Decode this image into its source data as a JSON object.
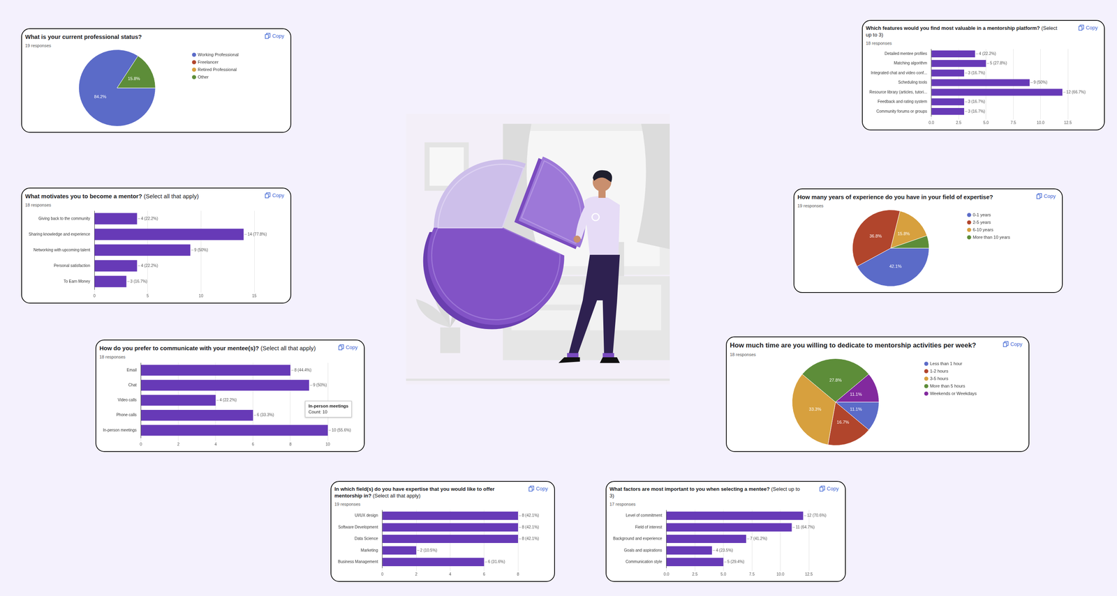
{
  "copy_label": "Copy",
  "chart_data": [
    {
      "type": "pie",
      "title": "What is your current professional status?",
      "subtitle": "19 responses",
      "categories": [
        "Working Professional",
        "Freelancer",
        "Retired Professional",
        "Other"
      ],
      "values": [
        84.2,
        0,
        0,
        15.8
      ],
      "colors": [
        "#5b6bc8",
        "#b1452c",
        "#d7a03e",
        "#5d8d39"
      ],
      "legend": "right",
      "data_labels": true,
      "value_labels": [
        "84.2%",
        null,
        null,
        "15.8%"
      ]
    },
    {
      "type": "bar",
      "orientation": "horizontal",
      "title": "What motivates you to become a mentor? (Select all that apply)",
      "subtitle": "18 responses",
      "categories": [
        "Giving back to the community",
        "Sharing knowledge and experience",
        "Networking with upcoming talent",
        "Personal satisfaction",
        "To Earn Money"
      ],
      "values": [
        4,
        14,
        9,
        4,
        3
      ],
      "value_labels": [
        "4 (22.2%)",
        "14 (77.8%)",
        "9 (50%)",
        "4 (22.2%)",
        "3 (16.7%)"
      ],
      "color": "#673ab7",
      "xlim": [
        0,
        15
      ],
      "xticks": [
        0,
        5,
        10,
        15
      ],
      "grid": true,
      "data_labels": true
    },
    {
      "type": "bar",
      "orientation": "horizontal",
      "title": "How do you prefer to communicate with your mentee(s)? (Select all that apply)",
      "subtitle": "18 responses",
      "categories": [
        "Email",
        "Chat",
        "Video calls",
        "Phone calls",
        "In-person meetings"
      ],
      "values": [
        8,
        9,
        4,
        6,
        10
      ],
      "value_labels": [
        "8 (44.4%)",
        "9 (50%)",
        "4 (22.2%)",
        "6 (33.3%)",
        "10 (55.6%)"
      ],
      "color": "#673ab7",
      "xlim": [
        0,
        10
      ],
      "xticks": [
        0,
        2,
        4,
        6,
        8,
        10
      ],
      "grid": true,
      "data_labels": true,
      "annotations": [
        "In-person meetings",
        "Count: 10"
      ]
    },
    {
      "type": "bar",
      "orientation": "horizontal",
      "title": "In which field(s) do you have expertise that you would like to offer mentorship in? (Select all that apply)",
      "subtitle": "19 responses",
      "categories": [
        "UI/UX design",
        "Software Development",
        "Data Science",
        "Marketing",
        "Business Management"
      ],
      "values": [
        8,
        8,
        8,
        2,
        6
      ],
      "value_labels": [
        "8 (42.1%)",
        "8 (42.1%)",
        "8 (42.1%)",
        "2 (10.5%)",
        "6 (31.6%)"
      ],
      "color": "#673ab7",
      "xlim": [
        0,
        8
      ],
      "xticks": [
        0,
        2,
        4,
        6,
        8
      ],
      "grid": true,
      "data_labels": true
    },
    {
      "type": "bar",
      "orientation": "horizontal",
      "title": "Which features would you find most valuable in a mentorship platform? (Select up to 3)",
      "subtitle": "18 responses",
      "categories": [
        "Detailed mentee profiles",
        "Matching algorithm",
        "Integrated chat and video conf...",
        "Scheduling tools",
        "Resource library (articles, tutori...",
        "Feedback and rating system",
        "Community forums or groups"
      ],
      "values": [
        4,
        5,
        3,
        9,
        12,
        3,
        3
      ],
      "value_labels": [
        "4 (22.2%)",
        "5 (27.8%)",
        "3 (16.7%)",
        "9 (50%)",
        "12 (66.7%)",
        "3 (16.7%)",
        "3 (16.7%)"
      ],
      "color": "#673ab7",
      "xlim": [
        0,
        12.5
      ],
      "xticks": [
        {
          "value": 0,
          "label": "0.0"
        },
        2.5,
        {
          "value": 5,
          "label": "5.0"
        },
        7.5,
        {
          "value": 10,
          "label": "10.0"
        },
        12.5
      ],
      "grid": true,
      "data_labels": true
    },
    {
      "type": "pie",
      "title": "How many years of experience do you have in your field of expertise?",
      "subtitle": "19 responses",
      "categories": [
        "0-1 years",
        "2-5 years",
        "6-10 years",
        "More than 10 years"
      ],
      "values": [
        42.1,
        36.8,
        15.8,
        5.3
      ],
      "colors": [
        "#5b6bc8",
        "#b1452c",
        "#d7a03e",
        "#5d8d39"
      ],
      "legend": "right",
      "data_labels": true,
      "value_labels": [
        "42.1%",
        "36.8%",
        "15.8%",
        null
      ]
    },
    {
      "type": "pie",
      "title": "How much time are you willing to dedicate to mentorship activities per week?",
      "subtitle": "18 responses",
      "categories": [
        "Less than 1 hour",
        "1-2 hours",
        "3-5 hours",
        "More than 5 hours",
        "Weekends or Weekdays"
      ],
      "values": [
        11.1,
        16.7,
        33.3,
        27.8,
        11.1
      ],
      "colors": [
        "#5b6bc8",
        "#b1452c",
        "#d7a03e",
        "#5d8d39",
        "#82299e"
      ],
      "legend": "right",
      "data_labels": true,
      "value_labels": [
        "11.1%",
        "16.7%",
        "33.3%",
        "27.8%",
        "11.1%"
      ]
    },
    {
      "type": "bar",
      "orientation": "horizontal",
      "title": "What factors are most important to you when selecting a mentee? (Select up to 3)",
      "subtitle": "17 responses",
      "categories": [
        "Level of commitment",
        "Field of interest",
        "Background and experience",
        "Goals and aspirations",
        "Communication style"
      ],
      "values": [
        12,
        11,
        7,
        4,
        5
      ],
      "value_labels": [
        "12 (70.6%)",
        "11 (64.7%)",
        "7 (41.2%)",
        "4 (23.5%)",
        "5 (29.4%)"
      ],
      "color": "#673ab7",
      "xlim": [
        0,
        12.5
      ],
      "xticks": [
        {
          "value": 0,
          "label": "0.0"
        },
        2.5,
        {
          "value": 5,
          "label": "5.0"
        },
        7.5,
        {
          "value": 10,
          "label": "10.0"
        },
        12.5
      ],
      "grid": true,
      "data_labels": true
    }
  ]
}
